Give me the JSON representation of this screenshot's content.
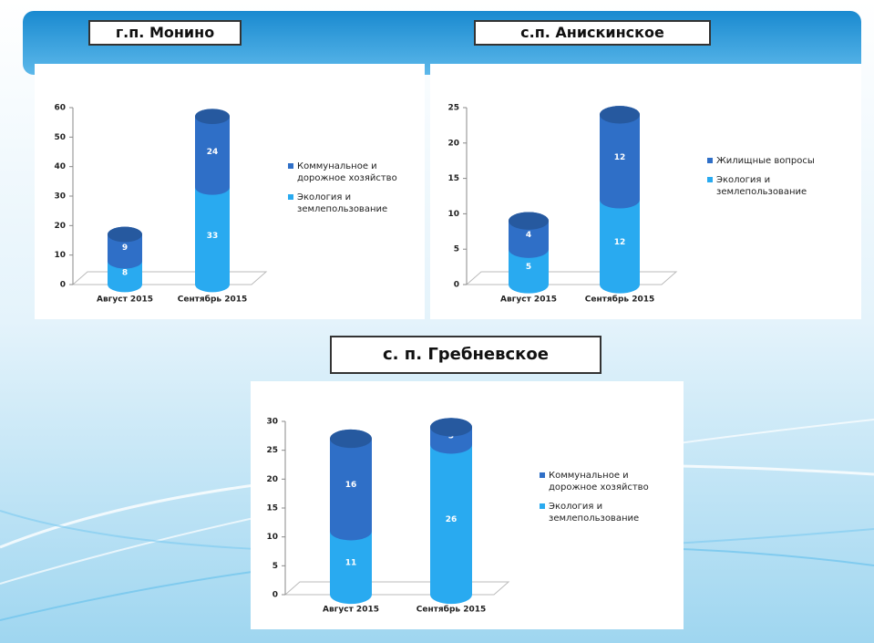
{
  "chart_data": [
    {
      "type": "bar",
      "title": "г.п. Монино",
      "categories": [
        "Август 2015",
        "Сентябрь 2015"
      ],
      "series": [
        {
          "name": "Коммунальное и дорожное хозяйство",
          "color": "#2f6fc7",
          "values": [
            9,
            24
          ]
        },
        {
          "name": "Экология и землепользование",
          "color": "#29aaf0",
          "values": [
            8,
            33
          ]
        }
      ],
      "ylim": [
        0,
        60
      ],
      "yticks": [
        0,
        10,
        20,
        30,
        40,
        50,
        60
      ]
    },
    {
      "type": "bar",
      "title": "с.п. Анискинское",
      "categories": [
        "Август 2015",
        "Сентябрь 2015"
      ],
      "series": [
        {
          "name": "Жилищные вопросы",
          "color": "#2f6fc7",
          "values": [
            4,
            12
          ]
        },
        {
          "name": "Экология и землепользование",
          "color": "#29aaf0",
          "values": [
            5,
            12
          ]
        }
      ],
      "ylim": [
        0,
        25
      ],
      "yticks": [
        0,
        5,
        10,
        15,
        20,
        25
      ]
    },
    {
      "type": "bar",
      "title": "с. п. Гребневское",
      "categories": [
        "Август 2015",
        "Сентябрь 2015"
      ],
      "series": [
        {
          "name": "Коммунальное и дорожное хозяйство",
          "color": "#2f6fc7",
          "values": [
            16,
            3
          ]
        },
        {
          "name": "Экология и землепользование",
          "color": "#29aaf0",
          "values": [
            11,
            26
          ]
        }
      ],
      "ylim": [
        0,
        30
      ],
      "yticks": [
        0,
        5,
        10,
        15,
        20,
        25,
        30
      ]
    }
  ]
}
